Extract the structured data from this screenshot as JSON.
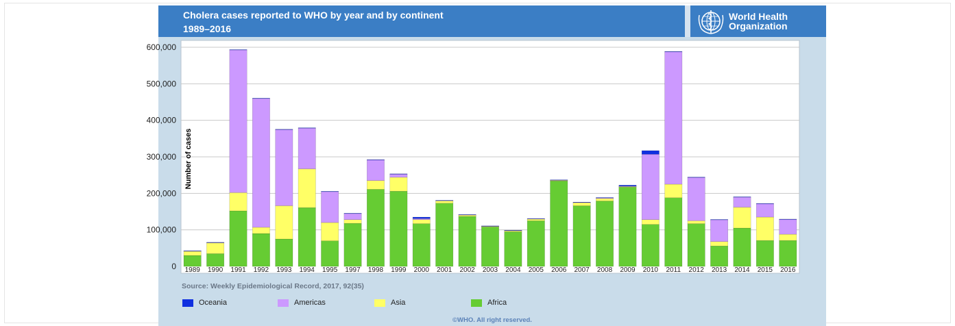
{
  "header": {
    "title_line1": "Cholera cases reported to WHO by year and by continent",
    "title_line2": "1989–2016",
    "logo_line1": "World Health",
    "logo_line2": "Organization"
  },
  "source": "Source: Weekly Epidemiological Record, 2017, 92(35)",
  "copyright": "©WHO. All right reserved.",
  "colors": {
    "header": "#3b7ec5",
    "panel": "#c9dcea",
    "Oceania": "#1030e0",
    "Americas": "#cc99ff",
    "Asia": "#ffff66",
    "Africa": "#66cc33"
  },
  "chart_data": {
    "type": "bar",
    "stacked": true,
    "title": "Cholera cases reported to WHO by year and by continent",
    "subtitle": "1989–2016",
    "xlabel": "",
    "ylabel": "Number of cases",
    "ylim": [
      0,
      600000
    ],
    "yticks": [
      0,
      100000,
      200000,
      300000,
      400000,
      500000,
      600000
    ],
    "ytick_labels": [
      "0",
      "100,000",
      "200,000",
      "300,000",
      "400,000",
      "500,000",
      "600,000"
    ],
    "grid": true,
    "legend_position": "bottom",
    "categories": [
      "1989",
      "1990",
      "1991",
      "1992",
      "1993",
      "1994",
      "1995",
      "1997",
      "1998",
      "1999",
      "2000",
      "2001",
      "2002",
      "2003",
      "2004",
      "2005",
      "2006",
      "2007",
      "2008",
      "2009",
      "2010",
      "2011",
      "2012",
      "2013",
      "2014",
      "2015",
      "2016"
    ],
    "series": [
      {
        "name": "Africa",
        "values": [
          30000,
          35000,
          152000,
          90000,
          75000,
          161000,
          70000,
          118000,
          211000,
          206000,
          117000,
          173000,
          137000,
          108000,
          95000,
          125000,
          234000,
          166000,
          179000,
          217000,
          115000,
          188000,
          117000,
          56000,
          105000,
          71000,
          71000
        ]
      },
      {
        "name": "Asia",
        "values": [
          12000,
          30000,
          50000,
          17000,
          91000,
          106000,
          50000,
          10000,
          24000,
          38000,
          11000,
          7000,
          4000,
          2000,
          3000,
          5000,
          2000,
          9000,
          7000,
          2000,
          13000,
          37000,
          8000,
          12000,
          57000,
          64000,
          17000
        ]
      },
      {
        "name": "Americas",
        "values": [
          500,
          500,
          391000,
          353000,
          209000,
          112000,
          85000,
          17000,
          57000,
          9000,
          3000,
          500,
          500,
          500,
          500,
          500,
          500,
          500,
          2000,
          500,
          179000,
          363000,
          119000,
          60000,
          28000,
          37000,
          41000
        ]
      },
      {
        "name": "Oceania",
        "values": [
          500,
          500,
          500,
          500,
          500,
          500,
          500,
          500,
          500,
          500,
          4000,
          500,
          500,
          500,
          500,
          500,
          500,
          500,
          500,
          3000,
          10000,
          500,
          500,
          500,
          500,
          500,
          500
        ]
      }
    ],
    "legend_order": [
      "Oceania",
      "Americas",
      "Asia",
      "Africa"
    ]
  }
}
